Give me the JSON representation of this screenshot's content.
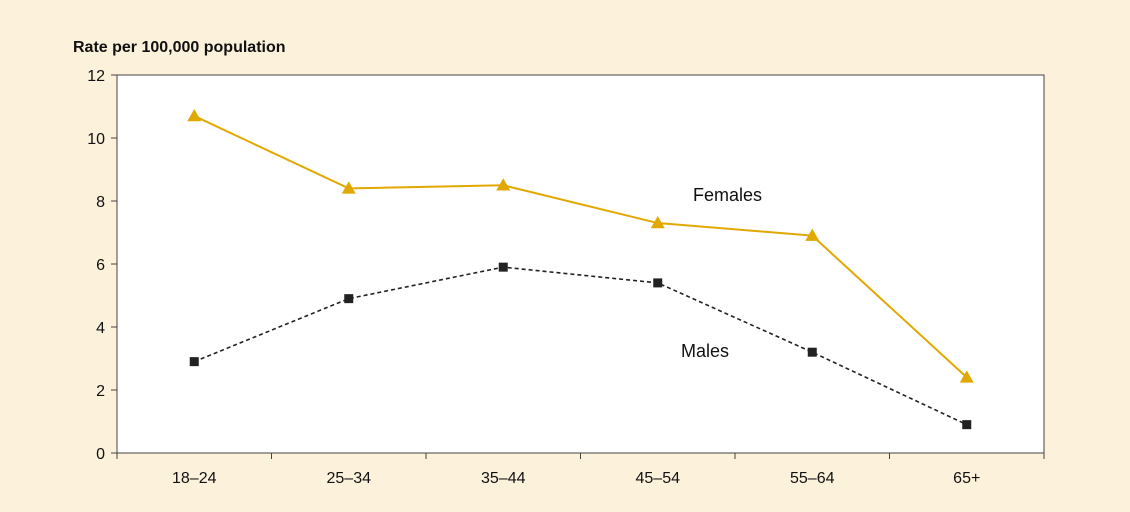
{
  "chart_data": {
    "type": "line",
    "ylabel": "Rate per 100,000 population",
    "xlabel": "",
    "categories": [
      "18–24",
      "25–34",
      "35–44",
      "45–54",
      "55–64",
      "65+"
    ],
    "ylim": [
      0,
      12
    ],
    "yticks": [
      0,
      2,
      4,
      6,
      8,
      10,
      12
    ],
    "grid": false,
    "legend": "inline labels",
    "series": [
      {
        "name": "Females",
        "values": [
          10.7,
          8.4,
          8.5,
          7.3,
          6.9,
          2.4
        ],
        "color": "#e1a800",
        "marker": "triangle",
        "line_style": "solid"
      },
      {
        "name": "Males",
        "values": [
          2.9,
          4.9,
          5.9,
          5.4,
          3.2,
          0.9
        ],
        "color": "#222222",
        "marker": "square",
        "line_style": "dashed"
      }
    ]
  },
  "colors": {
    "panel_background": "#fcf1da",
    "plot_background": "#ffffff",
    "axis": "#444444"
  }
}
